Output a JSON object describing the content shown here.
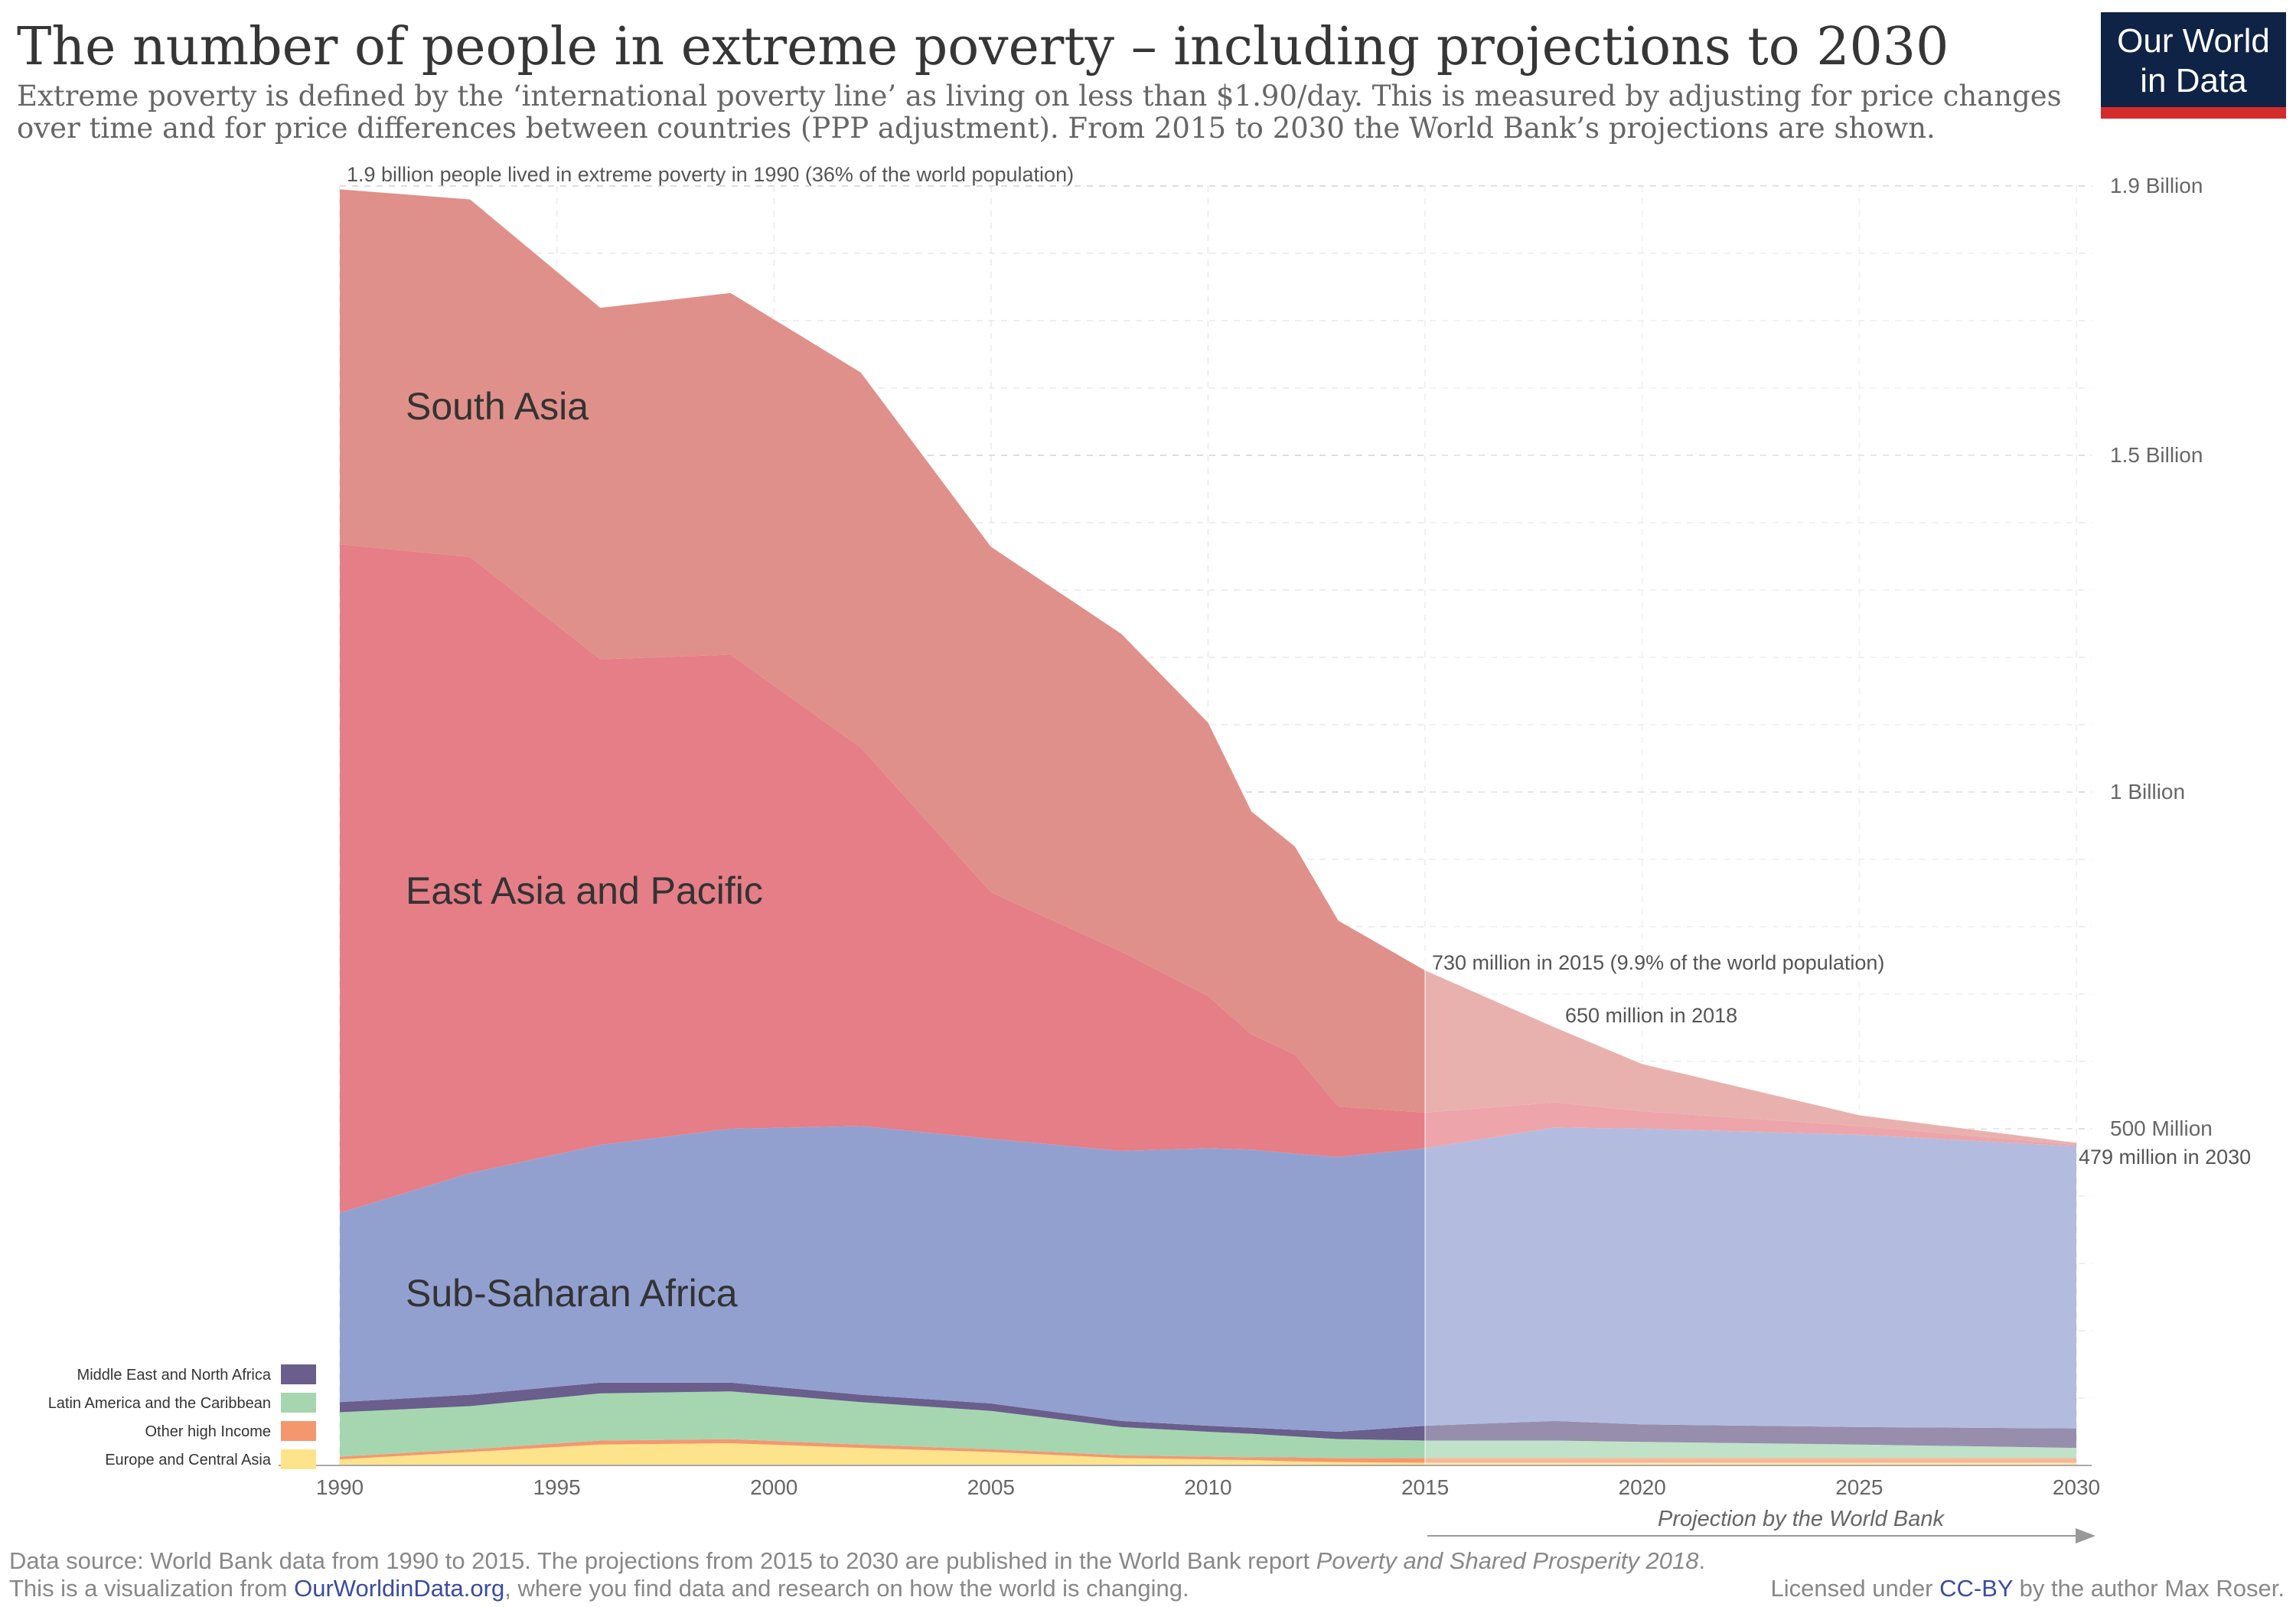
{
  "header": {
    "title": "The number of people in extreme poverty – including projections to 2030",
    "subtitle_line1": "Extreme poverty is defined by the ‘international poverty line’ as living on less than $1.90/day. This is measured by adjusting for price changes",
    "subtitle_line2": "over time and for price differences between countries (PPP adjustment). From 2015 to 2030 the World Bank’s projections are shown.",
    "logo_line1": "Our World",
    "logo_line2": "in Data",
    "logo_colors": {
      "background": "#0f2346",
      "stripe": "#d42b2b"
    }
  },
  "chart_data": {
    "type": "area",
    "stacked": true,
    "x": [
      1990,
      1993,
      1996,
      1999,
      2002,
      2005,
      2008,
      2010,
      2011,
      2012,
      2013,
      2015,
      2018,
      2020,
      2025,
      2030
    ],
    "unit": "million people",
    "ylim": [
      0,
      1900
    ],
    "xlim": [
      1990,
      2030
    ],
    "x_ticks": [
      "1990",
      "1995",
      "2000",
      "2005",
      "2010",
      "2015",
      "2020",
      "2025",
      "2030"
    ],
    "y_ticks": [
      {
        "value": 1900,
        "label": "1.9 Billion"
      },
      {
        "value": 1500,
        "label": "1.5 Billion"
      },
      {
        "value": 1000,
        "label": "1 Billion"
      },
      {
        "value": 500,
        "label": "500 Million"
      }
    ],
    "grid": true,
    "projection_start": 2015,
    "series": [
      {
        "name": "Europe and Central Asia",
        "color": "#fde38b",
        "values": [
          9,
          20,
          31,
          33,
          26,
          20,
          11,
          9,
          8,
          6,
          5,
          4,
          4,
          4,
          4,
          4
        ]
      },
      {
        "name": "Other high Income",
        "color": "#f4976f",
        "values": [
          4,
          4,
          6,
          6,
          5,
          4,
          4,
          4,
          4,
          6,
          6,
          7,
          7,
          7,
          7,
          7
        ]
      },
      {
        "name": "Latin America and the Caribbean",
        "color": "#a5d6b0",
        "values": [
          66,
          64,
          70,
          71,
          63,
          57,
          42,
          37,
          35,
          31,
          28,
          26,
          26,
          24,
          20,
          15
        ]
      },
      {
        "name": "Middle East and North Africa",
        "color": "#6a5e8c",
        "values": [
          15,
          17,
          16,
          13,
          11,
          11,
          9,
          9,
          9,
          10,
          11,
          22,
          29,
          26,
          26,
          29
        ]
      },
      {
        "name": "Sub-Saharan Africa",
        "color": "#92a0d0",
        "values": [
          281,
          329,
          353,
          377,
          399,
          393,
          401,
          412,
          413,
          410,
          408,
          412,
          436,
          439,
          434,
          419
        ]
      },
      {
        "name": "East Asia and Pacific",
        "color": "#e57e87",
        "values": [
          993,
          915,
          721,
          704,
          562,
          366,
          296,
          226,
          171,
          147,
          75,
          53,
          37,
          26,
          13,
          2
        ]
      },
      {
        "name": "South Asia",
        "color": "#e0908a",
        "values": [
          527,
          531,
          522,
          537,
          557,
          513,
          472,
          406,
          331,
          309,
          276,
          211,
          111,
          70,
          16,
          3
        ]
      }
    ],
    "annotations": {
      "a1990": "1.9 billion people lived in extreme poverty in 1990 (36% of the world population)",
      "a2015": "730 million in 2015 (9.9% of the world population)",
      "a2018": "650 million in 2018",
      "a2030": "479 million in 2030",
      "projection": "Projection by the World Bank"
    }
  },
  "footer": {
    "source_text": "Data source: World Bank data from 1990 to 2015. The projections from 2015 to 2030 are published in the World Bank report ",
    "source_report": "Poverty and Shared Prosperity 2018",
    "source_end": ".",
    "line2_start": "This is a visualization from ",
    "line2_link": "OurWorldinData.org",
    "line2_end": ", where you find data and research on how the world is changing.",
    "license_start": "Licensed under ",
    "license_link": "CC-BY",
    "license_end": " by the author Max Roser."
  }
}
